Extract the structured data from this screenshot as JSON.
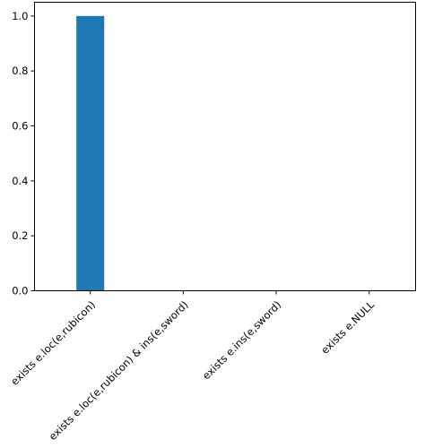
{
  "chart_data": {
    "type": "bar",
    "title": "",
    "xlabel": "",
    "ylabel": "",
    "categories": [
      "exists e.loc(e,rubicon)",
      "exists e.loc(e,rubicon) & ins(e,sword)",
      "exists e.ins(e,sword)",
      "exists e.NULL"
    ],
    "values": [
      1.0,
      0.0,
      0.0,
      0.0
    ],
    "ylim": [
      0,
      1.05
    ],
    "yticks": [
      0.0,
      0.2,
      0.4,
      0.6,
      0.8,
      1.0
    ],
    "ytick_labels": [
      "0.0",
      "0.2",
      "0.4",
      "0.6",
      "0.8",
      "1.0"
    ],
    "grid": false,
    "bar_color": "#1f77b4",
    "x_label_rotation_deg": 45
  }
}
